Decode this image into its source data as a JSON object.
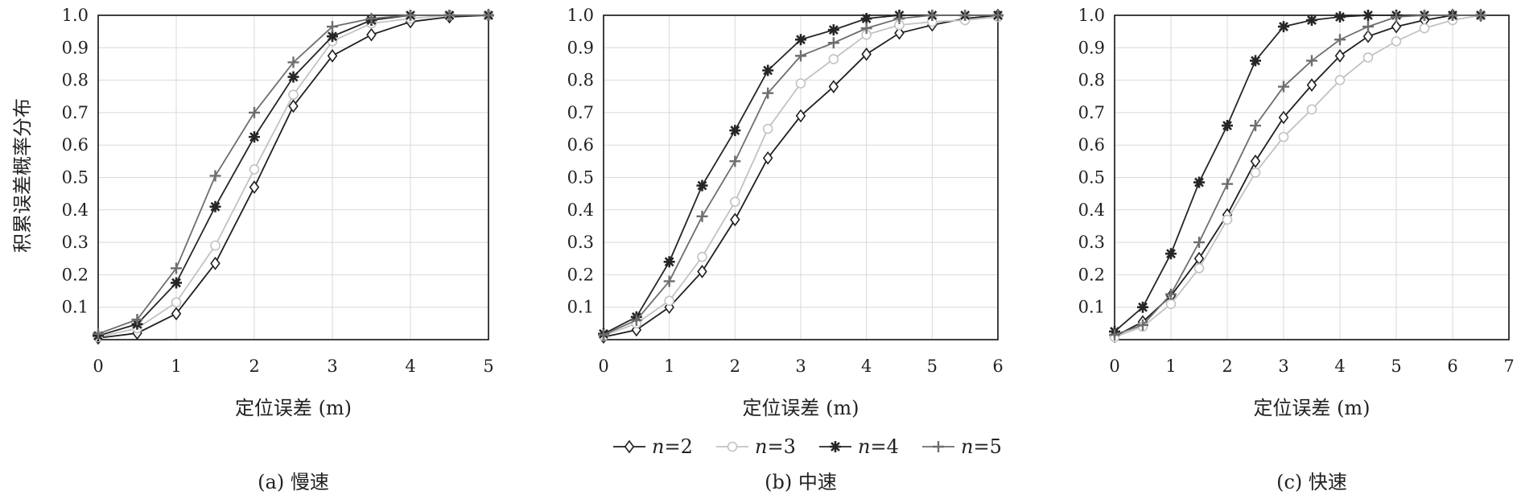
{
  "figure": {
    "ylabel": "积累误差概率分布",
    "legend": [
      {
        "label": "n=2",
        "series_index": 0
      },
      {
        "label": "n=3",
        "series_index": 1
      },
      {
        "label": "n=4",
        "series_index": 2
      },
      {
        "label": "n=5",
        "series_index": 3
      }
    ]
  },
  "chart_data": [
    {
      "type": "line",
      "caption": "(a) 慢速",
      "xlabel": "定位误差 (m)",
      "ylabel": "积累误差概率分布",
      "xlim": [
        0,
        5
      ],
      "ylim": [
        0,
        1.0
      ],
      "x_ticks": [
        0,
        1,
        2,
        3,
        4,
        5
      ],
      "y_ticks": [
        0.1,
        0.2,
        0.3,
        0.4,
        0.5,
        0.6,
        0.7,
        0.8,
        0.9,
        1.0
      ],
      "grid": true,
      "x": [
        0,
        0.5,
        1,
        1.5,
        2,
        2.5,
        3,
        3.5,
        4,
        4.5,
        5
      ],
      "series": [
        {
          "name": "n=2",
          "color": "#1f1f1f",
          "marker": "diamond",
          "values": [
            0.005,
            0.02,
            0.08,
            0.235,
            0.47,
            0.72,
            0.875,
            0.94,
            0.98,
            0.995,
            1.0
          ]
        },
        {
          "name": "n=3",
          "color": "#c2c2c2",
          "marker": "circle",
          "values": [
            0.008,
            0.035,
            0.115,
            0.29,
            0.525,
            0.755,
            0.92,
            0.975,
            0.99,
            1.0,
            1.0
          ]
        },
        {
          "name": "n=4",
          "color": "#262626",
          "marker": "asterisk",
          "values": [
            0.012,
            0.048,
            0.175,
            0.41,
            0.625,
            0.81,
            0.935,
            0.985,
            1.0,
            1.0,
            1.0
          ]
        },
        {
          "name": "n=5",
          "color": "#6e6e6e",
          "marker": "plus",
          "values": [
            0.018,
            0.062,
            0.22,
            0.505,
            0.7,
            0.855,
            0.965,
            0.99,
            1.0,
            1.0,
            1.0
          ]
        }
      ]
    },
    {
      "type": "line",
      "caption": "(b) 中速",
      "xlabel": "定位误差 (m)",
      "ylabel": "",
      "xlim": [
        0,
        6
      ],
      "ylim": [
        0,
        1.0
      ],
      "x_ticks": [
        0,
        1,
        2,
        3,
        4,
        5,
        6
      ],
      "y_ticks": [
        0.1,
        0.2,
        0.3,
        0.4,
        0.5,
        0.6,
        0.7,
        0.8,
        0.9,
        1.0
      ],
      "grid": true,
      "x": [
        0,
        0.5,
        1,
        1.5,
        2,
        2.5,
        3,
        3.5,
        4,
        4.5,
        5,
        5.5,
        6
      ],
      "series": [
        {
          "name": "n=2",
          "color": "#1f1f1f",
          "marker": "diamond",
          "values": [
            0.008,
            0.03,
            0.1,
            0.21,
            0.37,
            0.56,
            0.69,
            0.78,
            0.88,
            0.945,
            0.97,
            0.99,
            1.0
          ]
        },
        {
          "name": "n=3",
          "color": "#c2c2c2",
          "marker": "circle",
          "values": [
            0.012,
            0.05,
            0.12,
            0.255,
            0.425,
            0.65,
            0.79,
            0.865,
            0.94,
            0.97,
            0.98,
            0.985,
            0.995
          ]
        },
        {
          "name": "n=4",
          "color": "#262626",
          "marker": "asterisk",
          "values": [
            0.018,
            0.07,
            0.24,
            0.475,
            0.645,
            0.83,
            0.925,
            0.955,
            0.99,
            1.0,
            1.0,
            1.0,
            1.0
          ]
        },
        {
          "name": "n=5",
          "color": "#6e6e6e",
          "marker": "plus",
          "values": [
            0.015,
            0.06,
            0.18,
            0.38,
            0.55,
            0.76,
            0.875,
            0.915,
            0.96,
            0.99,
            1.0,
            1.0,
            1.0
          ]
        }
      ]
    },
    {
      "type": "line",
      "caption": "(c) 快速",
      "xlabel": "定位误差 (m)",
      "ylabel": "",
      "xlim": [
        0,
        7
      ],
      "ylim": [
        0,
        1.0
      ],
      "x_ticks": [
        0,
        1,
        2,
        3,
        4,
        5,
        6,
        7
      ],
      "y_ticks": [
        0.1,
        0.2,
        0.3,
        0.4,
        0.5,
        0.6,
        0.7,
        0.8,
        0.9,
        1.0
      ],
      "grid": true,
      "x": [
        0,
        0.5,
        1,
        1.5,
        2,
        2.5,
        3,
        3.5,
        4,
        4.5,
        5,
        5.5,
        6,
        6.5
      ],
      "series": [
        {
          "name": "n=2",
          "color": "#1f1f1f",
          "marker": "diamond",
          "values": [
            0.01,
            0.055,
            0.135,
            0.25,
            0.385,
            0.55,
            0.685,
            0.785,
            0.875,
            0.935,
            0.965,
            0.985,
            1.0,
            1.0
          ]
        },
        {
          "name": "n=3",
          "color": "#c2c2c2",
          "marker": "circle",
          "values": [
            0.008,
            0.04,
            0.11,
            0.22,
            0.37,
            0.515,
            0.625,
            0.71,
            0.8,
            0.87,
            0.92,
            0.96,
            0.985,
            1.0
          ]
        },
        {
          "name": "n=4",
          "color": "#262626",
          "marker": "asterisk",
          "values": [
            0.025,
            0.1,
            0.265,
            0.485,
            0.66,
            0.86,
            0.965,
            0.985,
            0.995,
            1.0,
            1.0,
            1.0,
            1.0,
            1.0
          ]
        },
        {
          "name": "n=5",
          "color": "#6e6e6e",
          "marker": "plus",
          "values": [
            0.015,
            0.045,
            0.14,
            0.3,
            0.48,
            0.66,
            0.78,
            0.86,
            0.925,
            0.965,
            0.995,
            1.0,
            1.0,
            1.0
          ]
        }
      ]
    }
  ]
}
